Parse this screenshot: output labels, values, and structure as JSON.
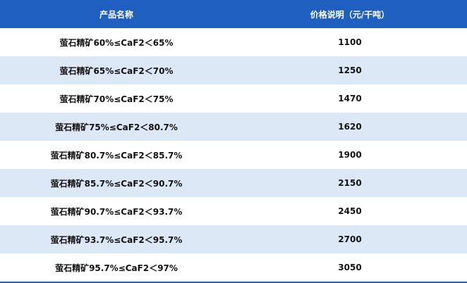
{
  "table": {
    "header": [
      "产品名称",
      "价格说明（元/干吨）"
    ],
    "rows": [
      [
        "萤石精矿60%≤CaF2＜65%",
        1100
      ],
      [
        "萤石精矿65%≤CaF2＜70%",
        1250
      ],
      [
        "萤石精矿70%≤CaF2＜75%",
        1470
      ],
      [
        "萤石精矿75%≤CaF2＜80.7%",
        1620
      ],
      [
        "萤石精矿80.7%≤CaF2＜85.7%",
        1900
      ],
      [
        "萤石精矿85.7%≤CaF2＜90.7%",
        2150
      ],
      [
        "萤石精矿90.7%≤CaF2＜93.7%",
        2450
      ],
      [
        "萤石精矿93.7%≤CaF2＜95.7%",
        2700
      ],
      [
        "萤石精矿95.7%≤CaF2＜97%",
        3050
      ]
    ]
  }
}
